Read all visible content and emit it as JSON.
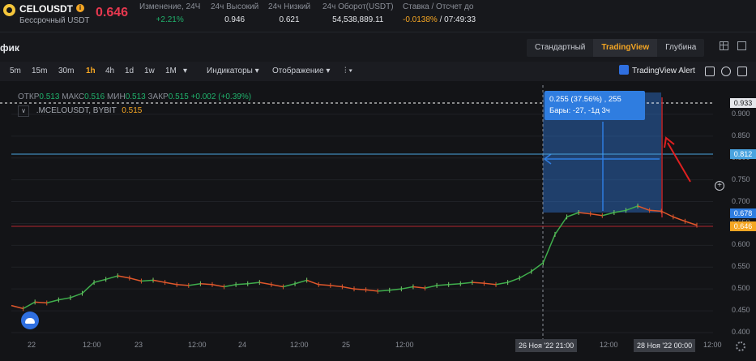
{
  "ticker": {
    "symbol": "CELOUSDT",
    "contract": "Бессрочный USDT",
    "last_price": "0.646",
    "stats": [
      {
        "label": "Изменение, 24Ч",
        "value": "+2.21%"
      },
      {
        "label": "24ч Высокий",
        "value": "0.946"
      },
      {
        "label": "24ч Низкий",
        "value": "0.621"
      },
      {
        "label": "24ч Оборот(USDT)",
        "value": "54,538,889.11"
      }
    ],
    "funding": {
      "label": "Ставка / Отсчет до",
      "rate": "-0.0138%",
      "countdown": "/ 07:49:33"
    }
  },
  "panel": {
    "title": "фик",
    "view_tabs": [
      "Стандартный",
      "TradingView",
      "Глубина"
    ]
  },
  "toolbar": {
    "timeframes": [
      "5m",
      "15m",
      "30m",
      "1h",
      "4h",
      "1d",
      "1w",
      "1M"
    ],
    "active_timeframe": "1h",
    "indicators": "Индикаторы",
    "display": "Отображение",
    "alert": "TradingView Alert"
  },
  "legend": {
    "ohlc": [
      {
        "k": "ОТКР",
        "v": "0.513"
      },
      {
        "k": "МАКС",
        "v": "0.516"
      },
      {
        "k": "МИН",
        "v": "0.513"
      },
      {
        "k": "ЗАКР",
        "v": "0.515"
      }
    ],
    "change": "+0.002 (+0.39%)",
    "series_name": ".MCELOUSDT, BYBIT",
    "series_value": "0.515"
  },
  "measure": {
    "line1": "0.255 (37.56%) , 255",
    "line2": "Бары: -27, -1д 3ч"
  },
  "price_axis": {
    "ticks": [
      "0.900",
      "0.850",
      "0.800",
      "0.750",
      "0.700",
      "0.650",
      "0.600",
      "0.550",
      "0.500",
      "0.450",
      "0.400"
    ],
    "tags": {
      "crosshair": "0.933",
      "horizontal": "0.812",
      "measure_top": "0.678",
      "last": "0.646"
    }
  },
  "time_axis": {
    "labels": [
      "22",
      "12:00",
      "23",
      "12:00",
      "24",
      "12:00",
      "25",
      "12:00",
      "12:00",
      "12:00"
    ],
    "tags": [
      "26 Ноя '22   21:00",
      "28 Ноя '22   00:00"
    ]
  },
  "chart_data": {
    "type": "line",
    "ylim": [
      0.4,
      0.95
    ],
    "values": [
      0.462,
      0.455,
      0.47,
      0.468,
      0.475,
      0.48,
      0.49,
      0.515,
      0.522,
      0.53,
      0.525,
      0.518,
      0.52,
      0.515,
      0.51,
      0.508,
      0.512,
      0.51,
      0.505,
      0.51,
      0.512,
      0.515,
      0.51,
      0.505,
      0.512,
      0.52,
      0.51,
      0.508,
      0.505,
      0.5,
      0.498,
      0.495,
      0.497,
      0.5,
      0.505,
      0.502,
      0.508,
      0.51,
      0.512,
      0.515,
      0.513,
      0.51,
      0.515,
      0.525,
      0.54,
      0.56,
      0.625,
      0.665,
      0.675,
      0.672,
      0.668,
      0.675,
      0.68,
      0.69,
      0.68,
      0.678,
      0.665,
      0.655,
      0.646
    ],
    "levels": {
      "horizontal": 0.812,
      "last": 0.646,
      "crosshair": 0.933
    }
  }
}
